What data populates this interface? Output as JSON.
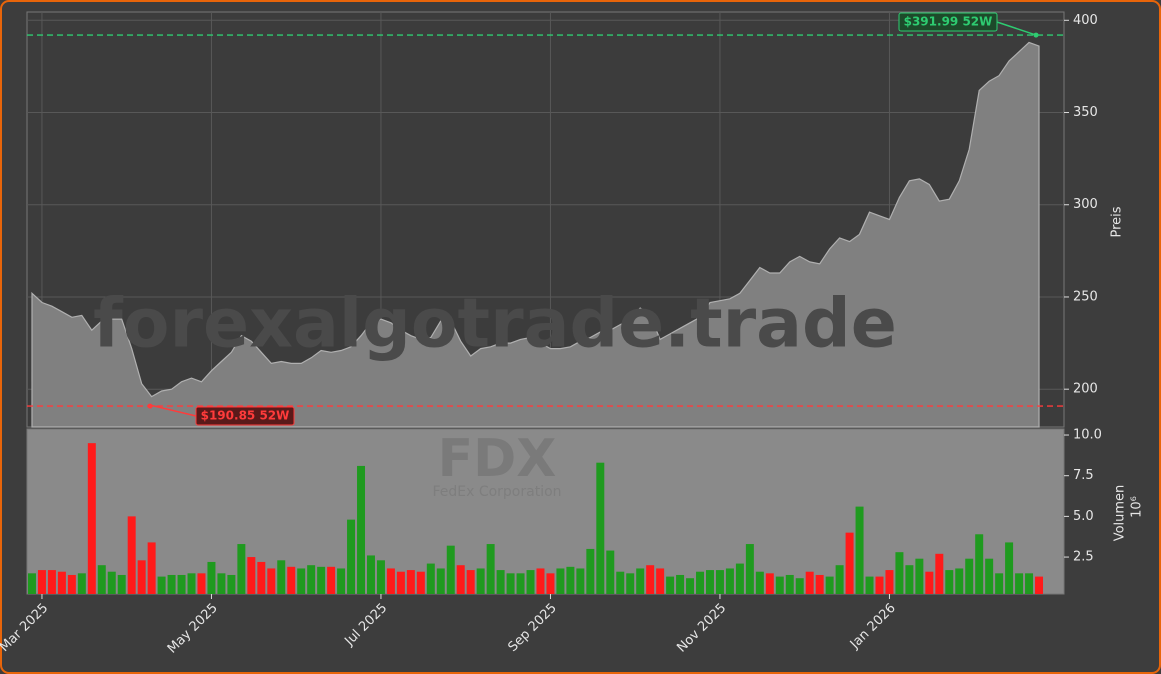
{
  "chart_data": [
    {
      "type": "area",
      "ylabel": "Preis",
      "watermark": "forexalgotrade.trade",
      "symbol": "FDX",
      "company": "FedEx Corporation",
      "color": "#808080",
      "line_color": "#b0b0b0",
      "ylim": [
        179.5,
        404.5
      ],
      "yticks": [
        200,
        250,
        300,
        350,
        400
      ],
      "grid": true,
      "categories": [
        null,
        "Mar 2025",
        null,
        null,
        null,
        null,
        null,
        null,
        null,
        null,
        null,
        null,
        null,
        null,
        null,
        null,
        null,
        null,
        "May 2025",
        null,
        null,
        null,
        null,
        null,
        null,
        null,
        null,
        null,
        null,
        null,
        null,
        null,
        null,
        null,
        null,
        "Jul 2025",
        null,
        null,
        null,
        null,
        null,
        null,
        null,
        null,
        null,
        null,
        null,
        null,
        null,
        null,
        null,
        null,
        "Sep 2025",
        null,
        null,
        null,
        null,
        null,
        null,
        null,
        null,
        null,
        null,
        null,
        null,
        null,
        null,
        null,
        null,
        "Nov 2025",
        null,
        null,
        null,
        null,
        null,
        null,
        null,
        null,
        null,
        null,
        null,
        null,
        null,
        null,
        null,
        null,
        "Jan 2026",
        null,
        null,
        null,
        null,
        null,
        null,
        null,
        null,
        null,
        null,
        null,
        null,
        null,
        null,
        null
      ],
      "values": [
        252,
        247,
        245,
        242,
        239,
        240,
        232,
        237,
        238,
        238,
        222,
        203,
        196,
        199,
        200,
        204,
        206,
        204,
        210,
        215,
        220,
        229,
        226,
        220,
        214,
        215,
        214,
        214,
        217,
        221,
        220,
        221,
        223,
        229,
        236,
        238,
        236,
        232,
        229,
        227,
        228,
        237,
        237,
        226,
        218,
        222,
        223,
        225,
        225,
        227,
        228,
        225,
        222,
        222,
        223,
        226,
        228,
        231,
        232,
        235,
        238,
        244,
        240,
        227,
        230,
        233,
        236,
        239,
        247,
        248,
        249,
        252,
        259,
        266,
        263,
        263,
        269,
        272,
        269,
        268,
        276,
        282,
        280,
        284,
        296,
        294,
        292,
        304,
        313,
        314,
        311,
        302,
        303,
        313,
        330,
        362,
        367,
        370,
        378,
        383,
        388,
        386
      ],
      "high": {
        "value": 391.99,
        "label": "$391.99 52W",
        "color": "#2ecc71"
      },
      "low": {
        "value": 190.85,
        "label": "$190.85 52W",
        "color": "#ff3b3b"
      }
    },
    {
      "type": "bar",
      "ylabel": "Volumen",
      "offset_label": "10⁶",
      "up_color": "#1f9a1f",
      "down_color": "#ff1a1a",
      "ylim": [
        0.23,
        10.37
      ],
      "yticks": [
        {
          "value": 10,
          "label": "10.0"
        },
        7.5,
        {
          "value": 5,
          "label": "5.0"
        },
        2.5
      ],
      "values": [
        1.5,
        1.7,
        1.7,
        1.6,
        1.4,
        1.5,
        9.5,
        2.0,
        1.6,
        1.4,
        5.0,
        2.3,
        3.4,
        1.3,
        1.4,
        1.4,
        1.5,
        1.5,
        2.2,
        1.5,
        1.4,
        3.3,
        2.5,
        2.2,
        1.8,
        2.3,
        1.9,
        1.8,
        2.0,
        1.9,
        1.9,
        1.8,
        4.8,
        8.1,
        2.6,
        2.3,
        1.8,
        1.6,
        1.7,
        1.6,
        2.1,
        1.8,
        3.2,
        2.0,
        1.7,
        1.8,
        3.3,
        1.7,
        1.5,
        1.5,
        1.7,
        1.8,
        1.5,
        1.8,
        1.9,
        1.8,
        3.0,
        8.3,
        2.9,
        1.6,
        1.5,
        1.8,
        2.0,
        1.8,
        1.3,
        1.4,
        1.2,
        1.6,
        1.7,
        1.7,
        1.8,
        2.1,
        3.3,
        1.6,
        1.5,
        1.3,
        1.4,
        1.2,
        1.6,
        1.4,
        1.3,
        2.0,
        4.0,
        5.6,
        1.3,
        1.3,
        1.7,
        2.8,
        2.0,
        2.4,
        1.6,
        2.7,
        1.7,
        1.8,
        2.4,
        3.9,
        2.4,
        1.5,
        3.4,
        1.5,
        1.5,
        1.3
      ]
    }
  ]
}
